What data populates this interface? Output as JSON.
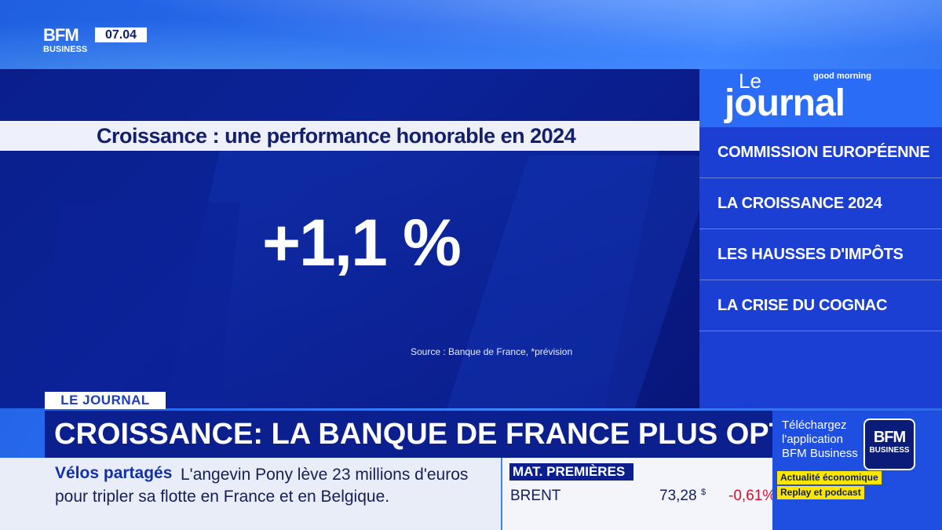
{
  "channel": {
    "logo_top": "BFM",
    "logo_bottom": "BUSINESS",
    "clock": "07.04"
  },
  "graphic": {
    "headline": "Croissance : une performance honorable en 2024",
    "value": "+1,1 %",
    "source": "Source : Banque de France, *prévision"
  },
  "sidebar": {
    "show_small": "Le",
    "show_big": "journal",
    "show_badge": "good morning",
    "items": [
      {
        "label": "COMMISSION EUROPÉENNE"
      },
      {
        "label": "LA CROISSANCE 2024"
      },
      {
        "label": "LES HAUSSES D'IMPÔTS"
      },
      {
        "label": "LA CRISE DU COGNAC"
      }
    ]
  },
  "lower_third": {
    "tag": "LE JOURNAL",
    "title": "CROISSANCE: LA BANQUE DE FRANCE PLUS OPTIMISTE"
  },
  "ticker": {
    "title": "Vélos partagés",
    "text": "L'angevin Pony lève 23 millions d'euros pour tripler sa flotte en France et en Belgique."
  },
  "market": {
    "header": "MAT. PREMIÈRES",
    "name": "BRENT",
    "price": "73,28",
    "unit": "$",
    "change": "-0,61%",
    "change_color": "#d4102b"
  },
  "promo": {
    "text": "Téléchargez l'application BFM Business",
    "logo_top": "BFM",
    "logo_bottom": "BUSINESS",
    "pill_1": "Actualité économique",
    "pill_2": "Replay et podcast"
  }
}
